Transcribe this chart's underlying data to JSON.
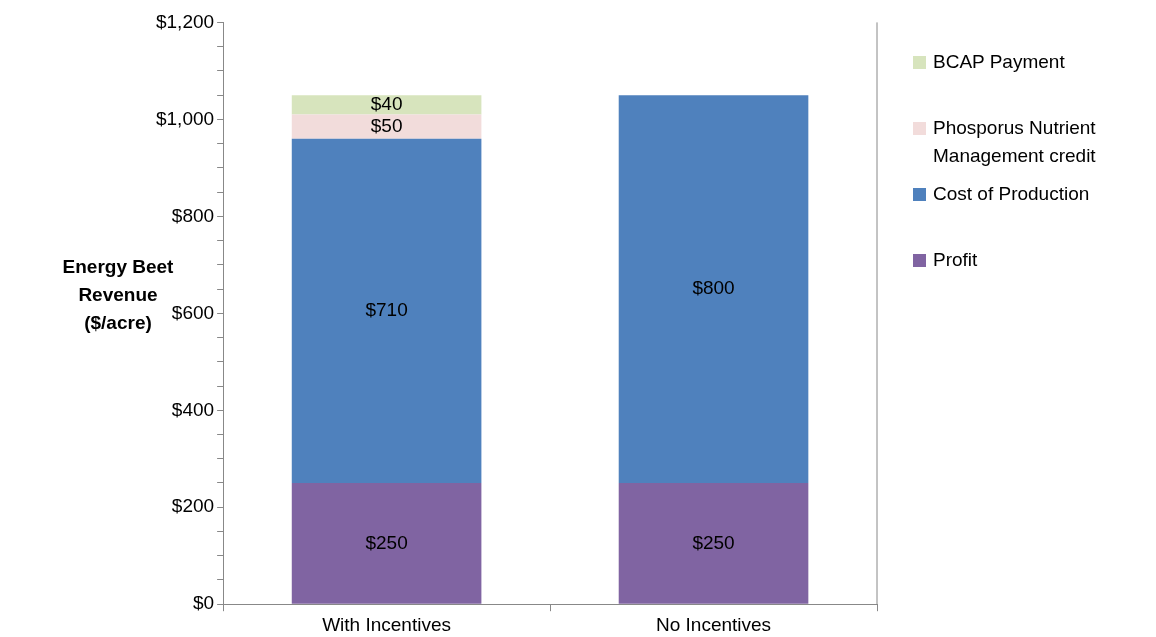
{
  "chart_data": {
    "type": "bar",
    "stacked": true,
    "ylabel": "Energy Beet Revenue ($/acre)",
    "categories": [
      "With Incentives",
      "No Incentives"
    ],
    "series": [
      {
        "name": "Profit",
        "color": "#8064a2",
        "values": [
          250,
          250
        ],
        "value_labels": [
          "$250",
          "$250"
        ]
      },
      {
        "name": "Cost of Production",
        "color": "#4f81bd",
        "values": [
          710,
          800
        ],
        "value_labels": [
          "$710",
          "$800"
        ]
      },
      {
        "name": "Phosporus Nutrient Management credit",
        "color": "#f2dcdb",
        "values": [
          50,
          null
        ],
        "value_labels": [
          "$50",
          null
        ]
      },
      {
        "name": "BCAP Payment",
        "color": "#d7e4bd",
        "values": [
          40,
          null
        ],
        "value_labels": [
          "$40",
          null
        ]
      }
    ],
    "ylim": [
      0,
      1200
    ],
    "yticks": [
      {
        "value": 0,
        "label": "$0"
      },
      {
        "value": 50,
        "label": null
      },
      {
        "value": 100,
        "label": null
      },
      {
        "value": 150,
        "label": null
      },
      {
        "value": 200,
        "label": "$200"
      },
      {
        "value": 250,
        "label": null
      },
      {
        "value": 300,
        "label": null
      },
      {
        "value": 350,
        "label": null
      },
      {
        "value": 400,
        "label": "$400"
      },
      {
        "value": 450,
        "label": null
      },
      {
        "value": 500,
        "label": null
      },
      {
        "value": 550,
        "label": null
      },
      {
        "value": 600,
        "label": "$600"
      },
      {
        "value": 650,
        "label": null
      },
      {
        "value": 700,
        "label": null
      },
      {
        "value": 750,
        "label": null
      },
      {
        "value": 800,
        "label": "$800"
      },
      {
        "value": 850,
        "label": null
      },
      {
        "value": 900,
        "label": null
      },
      {
        "value": 950,
        "label": null
      },
      {
        "value": 1000,
        "label": "$1,000"
      },
      {
        "value": 1050,
        "label": null
      },
      {
        "value": 1100,
        "label": null
      },
      {
        "value": 1150,
        "label": null
      },
      {
        "value": 1200,
        "label": "$1,200"
      }
    ],
    "grid": false,
    "legend": "right"
  }
}
